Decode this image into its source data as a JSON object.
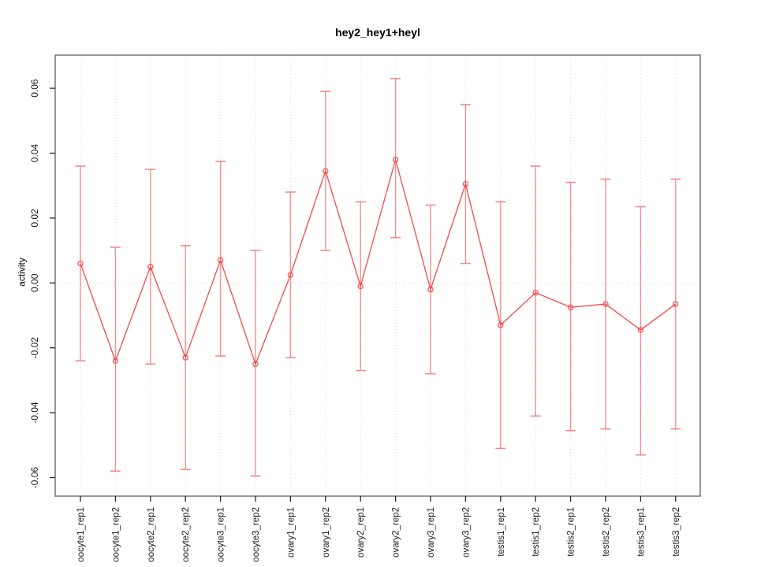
{
  "chart_data": {
    "type": "line",
    "title": "hey2_hey1+heyl",
    "xlabel": "",
    "ylabel": "activity",
    "ylim": [
      -0.066,
      0.07
    ],
    "yticks": [
      0.06,
      0.04,
      0.02,
      0.0,
      -0.02,
      -0.04,
      -0.06
    ],
    "ytick_labels": [
      "0.06",
      "0.04",
      "0.02",
      "0.00",
      "-0.02",
      "-0.04",
      "-0.06"
    ],
    "grid": "vertical-dotted-per-category",
    "zero_line_dotted": true,
    "legend": "none",
    "marker": "open-circle",
    "categories": [
      "oocyte1_rep1",
      "oocyte1_rep2",
      "oocyte2_rep1",
      "oocyte2_rep2",
      "oocyte3_rep1",
      "oocyte3_rep2",
      "ovary1_rep1",
      "ovary1_rep2",
      "ovary2_rep1",
      "ovary2_rep2",
      "ovary3_rep1",
      "ovary3_rep2",
      "testis1_rep1",
      "testis1_rep2",
      "testis2_rep1",
      "testis2_rep2",
      "testis3_rep1",
      "testis3_rep2"
    ],
    "series": [
      {
        "name": "activity",
        "values": [
          0.006,
          -0.024,
          0.005,
          -0.023,
          0.007,
          -0.025,
          0.0025,
          0.0345,
          -0.001,
          0.038,
          -0.002,
          0.0305,
          -0.013,
          -0.003,
          -0.0075,
          -0.0065,
          -0.0145,
          -0.0065
        ],
        "error_upper": [
          0.036,
          0.011,
          0.035,
          0.0115,
          0.0375,
          0.01,
          0.028,
          0.059,
          0.025,
          0.063,
          0.024,
          0.055,
          0.025,
          0.036,
          0.031,
          0.032,
          0.0235,
          0.032
        ],
        "error_lower": [
          -0.024,
          -0.058,
          -0.025,
          -0.0575,
          -0.0225,
          -0.0595,
          -0.023,
          0.01,
          -0.027,
          0.014,
          -0.028,
          0.006,
          -0.051,
          -0.041,
          -0.0455,
          -0.045,
          -0.053,
          -0.045
        ]
      }
    ],
    "colors": {
      "line": "#f14b4b",
      "error_bar": "#f47d7d",
      "grid": "#d9d9d9",
      "frame": "#7d7d7d",
      "tick": "#262626",
      "text": "#000000",
      "background": "#ffffff"
    }
  }
}
